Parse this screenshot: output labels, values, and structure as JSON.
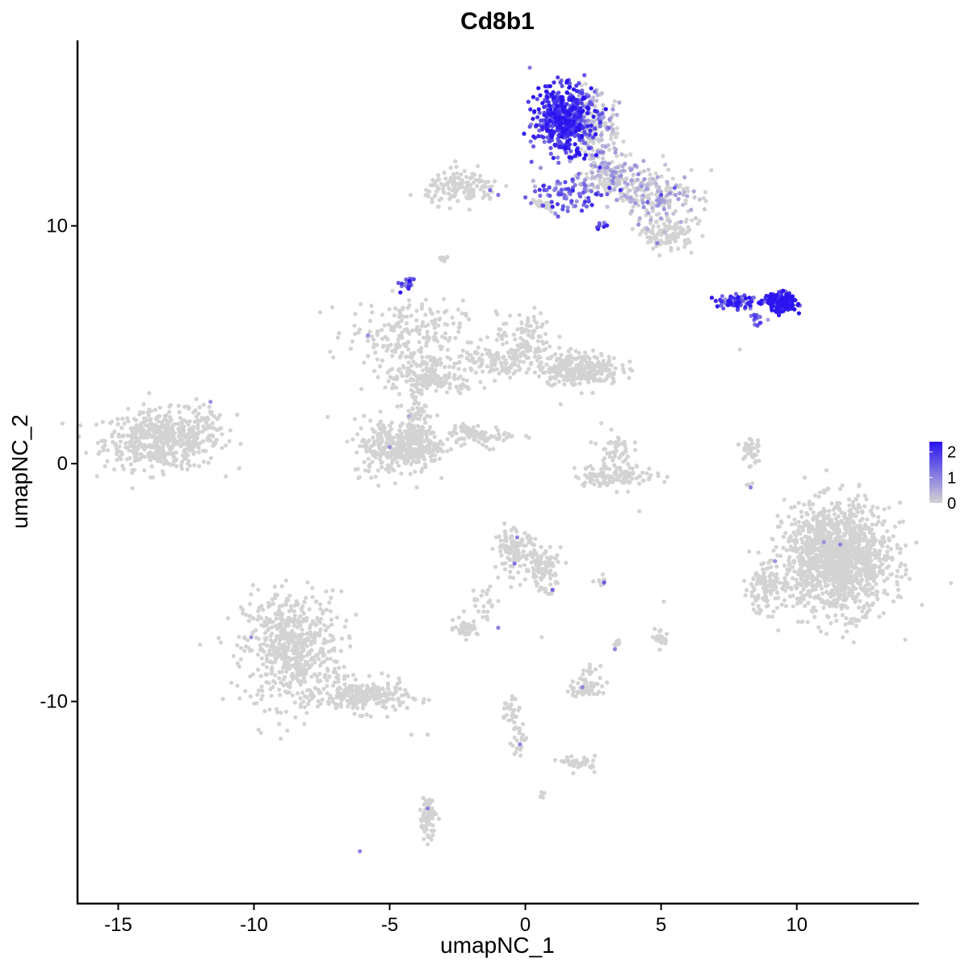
{
  "chart_data": {
    "type": "scatter",
    "title": "Cd8b1",
    "xlabel": "umapNC_1",
    "ylabel": "umapNC_2",
    "xlim": [
      -16.5,
      14.5
    ],
    "ylim": [
      -18.5,
      17.8
    ],
    "x_ticks": [
      -15,
      -10,
      -5,
      0,
      5,
      10
    ],
    "y_ticks": [
      -10,
      0,
      10
    ],
    "x_tick_labels": [
      "-15",
      "-10",
      "-5",
      "0",
      "5",
      "10"
    ],
    "y_tick_labels": [
      "-10",
      "0",
      "10"
    ],
    "grid": false,
    "legend": {
      "placement": "right",
      "ticks": [
        0,
        1,
        2
      ],
      "tick_labels": [
        "0",
        "1",
        "2"
      ],
      "range": [
        0,
        2.4
      ],
      "color_low": "#d3d3d3",
      "color_high": "#2a14f0"
    },
    "point_color_low": "#d3d3d3",
    "point_color_high": "#2a14f0",
    "clusters": [
      {
        "cx": -13.4,
        "cy": 1.0,
        "sx": 1.4,
        "sy": 0.8,
        "n": 520,
        "expr": 0.0
      },
      {
        "cx": -11.8,
        "cy": 1.7,
        "sx": 0.5,
        "sy": 0.6,
        "n": 40,
        "expr": 0.0
      },
      {
        "cx": -8.6,
        "cy": -7.8,
        "sx": 1.2,
        "sy": 1.6,
        "n": 600,
        "expr": 0.0
      },
      {
        "cx": -6.0,
        "cy": -9.8,
        "sx": 1.1,
        "sy": 0.45,
        "n": 220,
        "expr": 0.0
      },
      {
        "cx": -4.4,
        "cy": 5.5,
        "sx": 1.4,
        "sy": 0.9,
        "n": 200,
        "expr": 0.0
      },
      {
        "cx": -3.8,
        "cy": 3.7,
        "sx": 0.9,
        "sy": 0.5,
        "n": 120,
        "expr": 0.0
      },
      {
        "cx": -5.0,
        "cy": 0.7,
        "sx": 0.9,
        "sy": 0.8,
        "n": 230,
        "expr": 0.0
      },
      {
        "cx": -4.1,
        "cy": 2.0,
        "sx": 0.3,
        "sy": 0.8,
        "n": 60,
        "expr": 0.0
      },
      {
        "cx": -3.9,
        "cy": 0.8,
        "sx": 0.55,
        "sy": 0.6,
        "n": 160,
        "expr": 0.0
      },
      {
        "cx": -1.3,
        "cy": 4.3,
        "sx": 1.4,
        "sy": 0.5,
        "n": 140,
        "expr": 0.0
      },
      {
        "cx": 0.0,
        "cy": 5.3,
        "sx": 0.7,
        "sy": 0.7,
        "n": 80,
        "expr": 0.0
      },
      {
        "cx": 2.0,
        "cy": 4.0,
        "sx": 1.0,
        "sy": 0.45,
        "n": 260,
        "expr": 0.0
      },
      {
        "cx": -1.6,
        "cy": 1.2,
        "sx": 0.9,
        "sy": 0.25,
        "n": 60,
        "expr": 0.0
      },
      {
        "cx": -4.4,
        "cy": 7.5,
        "sx": 0.2,
        "sy": 0.2,
        "n": 22,
        "expr": 1.5
      },
      {
        "cx": -3.0,
        "cy": 8.6,
        "sx": 0.12,
        "sy": 0.12,
        "n": 12,
        "expr": 0.0
      },
      {
        "cx": -2.3,
        "cy": 11.6,
        "sx": 0.9,
        "sy": 0.45,
        "n": 140,
        "expr": 0.0
      },
      {
        "cx": 1.4,
        "cy": 14.5,
        "sx": 0.7,
        "sy": 0.9,
        "n": 520,
        "expr": 1.9
      },
      {
        "cx": 2.6,
        "cy": 14.2,
        "sx": 0.6,
        "sy": 1.0,
        "n": 170,
        "expr": 0.2
      },
      {
        "cx": 1.4,
        "cy": 11.3,
        "sx": 0.9,
        "sy": 0.5,
        "n": 80,
        "expr": 1.4
      },
      {
        "cx": 3.0,
        "cy": 12.0,
        "sx": 0.7,
        "sy": 0.6,
        "n": 140,
        "expr": 0.1
      },
      {
        "cx": 4.8,
        "cy": 11.3,
        "sx": 1.1,
        "sy": 0.8,
        "n": 200,
        "expr": 0.1
      },
      {
        "cx": 5.3,
        "cy": 9.6,
        "sx": 0.6,
        "sy": 0.4,
        "n": 110,
        "expr": 0.0
      },
      {
        "cx": 7.8,
        "cy": 6.8,
        "sx": 0.7,
        "sy": 0.18,
        "n": 80,
        "expr": 1.7
      },
      {
        "cx": 9.4,
        "cy": 6.8,
        "sx": 0.4,
        "sy": 0.25,
        "n": 170,
        "expr": 2.2
      },
      {
        "cx": 8.6,
        "cy": 6.1,
        "sx": 0.2,
        "sy": 0.2,
        "n": 15,
        "expr": 1.5
      },
      {
        "cx": 3.3,
        "cy": -0.5,
        "sx": 1.0,
        "sy": 0.3,
        "n": 120,
        "expr": 0.0
      },
      {
        "cx": 3.3,
        "cy": 0.6,
        "sx": 0.4,
        "sy": 0.45,
        "n": 45,
        "expr": 0.0
      },
      {
        "cx": 8.3,
        "cy": 0.6,
        "sx": 0.25,
        "sy": 0.5,
        "n": 35,
        "expr": 0.0
      },
      {
        "cx": 11.5,
        "cy": -4.0,
        "sx": 1.3,
        "sy": 1.5,
        "n": 1400,
        "expr": 0.0
      },
      {
        "cx": 8.8,
        "cy": -5.2,
        "sx": 0.5,
        "sy": 0.7,
        "n": 110,
        "expr": 0.0
      },
      {
        "cx": -0.4,
        "cy": -3.7,
        "sx": 0.5,
        "sy": 0.6,
        "n": 120,
        "expr": 0.0
      },
      {
        "cx": 0.7,
        "cy": -4.3,
        "sx": 0.5,
        "sy": 0.6,
        "n": 90,
        "expr": 0.0
      },
      {
        "cx": -1.5,
        "cy": -5.8,
        "sx": 0.4,
        "sy": 0.5,
        "n": 25,
        "expr": 0.0
      },
      {
        "cx": -2.2,
        "cy": -6.9,
        "sx": 0.3,
        "sy": 0.2,
        "n": 45,
        "expr": 0.0
      },
      {
        "cx": 2.3,
        "cy": -9.4,
        "sx": 0.45,
        "sy": 0.3,
        "n": 60,
        "expr": 0.0
      },
      {
        "cx": 2.4,
        "cy": -8.7,
        "sx": 0.2,
        "sy": 0.15,
        "n": 12,
        "expr": 0.0
      },
      {
        "cx": 5.0,
        "cy": -7.3,
        "sx": 0.15,
        "sy": 0.3,
        "n": 22,
        "expr": 0.0
      },
      {
        "cx": 3.4,
        "cy": -7.6,
        "sx": 0.1,
        "sy": 0.15,
        "n": 8,
        "expr": 0.0
      },
      {
        "cx": -0.5,
        "cy": -10.5,
        "sx": 0.25,
        "sy": 0.6,
        "n": 35,
        "expr": 0.0
      },
      {
        "cx": -0.2,
        "cy": -11.8,
        "sx": 0.2,
        "sy": 0.3,
        "n": 20,
        "expr": 0.0
      },
      {
        "cx": 2.0,
        "cy": -12.6,
        "sx": 0.4,
        "sy": 0.2,
        "n": 40,
        "expr": 0.0
      },
      {
        "cx": -3.6,
        "cy": -14.9,
        "sx": 0.2,
        "sy": 0.6,
        "n": 70,
        "expr": 0.0
      },
      {
        "cx": 0.6,
        "cy": -14.0,
        "sx": 0.1,
        "sy": 0.1,
        "n": 5,
        "expr": 0.0
      },
      {
        "cx": 2.8,
        "cy": 10.0,
        "sx": 0.15,
        "sy": 0.1,
        "n": 8,
        "expr": 1.5
      }
    ],
    "lines": [
      {
        "x0": -2.4,
        "y0": 1.6,
        "x1": -1.3,
        "y1": 0.7,
        "n": 40
      },
      {
        "x0": -3.9,
        "y0": 2.8,
        "x1": -3.3,
        "y1": 4.4,
        "n": 25
      },
      {
        "x0": -4.0,
        "y0": 3.6,
        "x1": -2.0,
        "y1": 3.1,
        "n": 35
      },
      {
        "x0": 0.3,
        "y0": 11.1,
        "x1": 1.1,
        "y1": 10.7,
        "n": 25
      },
      {
        "x0": -0.1,
        "y0": 4.6,
        "x1": 0.3,
        "y1": 6.2,
        "n": 15
      },
      {
        "x0": 0.4,
        "y0": -5.3,
        "x1": 1.1,
        "y1": -5.4,
        "n": 10
      },
      {
        "x0": 2.6,
        "y0": -5.0,
        "x1": 3.0,
        "y1": -4.9,
        "n": 8
      },
      {
        "x0": 8.1,
        "y0": -0.9,
        "x1": 8.2,
        "y1": -0.9,
        "n": 3
      }
    ],
    "points": [
      {
        "x": -6.1,
        "y": -16.3,
        "v": 1.0
      },
      {
        "x": -4.2,
        "y": -11.4,
        "v": 0.0
      },
      {
        "x": -3.6,
        "y": -11.4,
        "v": 0.0
      },
      {
        "x": 0.6,
        "y": -7.3,
        "v": 0.0
      },
      {
        "x": 2.2,
        "y": -0.8,
        "v": 0.0
      },
      {
        "x": 4.2,
        "y": -2.0,
        "v": 0.0
      },
      {
        "x": 5.1,
        "y": -5.8,
        "v": 0.0
      },
      {
        "x": 7.9,
        "y": 4.8,
        "v": 0.0
      },
      {
        "x": 2.8,
        "y": 1.7,
        "v": 0.0
      },
      {
        "x": 1.3,
        "y": 2.5,
        "v": 0.0
      },
      {
        "x": 8.3,
        "y": -1.0,
        "v": 1.0
      },
      {
        "x": 11.0,
        "y": -3.3,
        "v": 0.8
      },
      {
        "x": 11.6,
        "y": -3.4,
        "v": 1.0
      },
      {
        "x": 9.2,
        "y": -4.1,
        "v": 0.8
      },
      {
        "x": -1.0,
        "y": -6.9,
        "v": 1.0
      },
      {
        "x": 1.0,
        "y": -5.3,
        "v": 1.4
      },
      {
        "x": 2.9,
        "y": -5.0,
        "v": 1.5
      },
      {
        "x": -0.4,
        "y": -4.2,
        "v": 1.2
      },
      {
        "x": -0.3,
        "y": -3.1,
        "v": 1.0
      },
      {
        "x": 3.3,
        "y": -7.8,
        "v": 1.0
      },
      {
        "x": -0.2,
        "y": -11.8,
        "v": 1.0
      },
      {
        "x": -4.0,
        "y": -1.0,
        "v": 0.0
      },
      {
        "x": -5.0,
        "y": 0.7,
        "v": 0.8
      },
      {
        "x": -4.3,
        "y": 2.0,
        "v": 0.5
      },
      {
        "x": -10.1,
        "y": -7.3,
        "v": 0.8
      },
      {
        "x": -3.6,
        "y": -14.5,
        "v": 1.0
      },
      {
        "x": 2.1,
        "y": -9.4,
        "v": 1.0
      },
      {
        "x": -5.8,
        "y": 5.4,
        "v": 0.8
      },
      {
        "x": -11.6,
        "y": 2.6,
        "v": 0.8
      },
      {
        "x": 0.0,
        "y": 11.2,
        "v": 1.5
      },
      {
        "x": 1.0,
        "y": 10.8,
        "v": 2.2
      },
      {
        "x": 3.5,
        "y": 11.5,
        "v": 2.0
      },
      {
        "x": 3.1,
        "y": 11.6,
        "v": 2.2
      },
      {
        "x": 1.6,
        "y": 14.4,
        "v": 2.4
      },
      {
        "x": 1.9,
        "y": 13.2,
        "v": 2.4
      },
      {
        "x": 2.0,
        "y": 13.0,
        "v": 2.4
      },
      {
        "x": 9.3,
        "y": 6.6,
        "v": 2.4
      },
      {
        "x": 9.6,
        "y": 6.8,
        "v": 2.4
      },
      {
        "x": 4.5,
        "y": 11.0,
        "v": 1.5
      },
      {
        "x": 5.0,
        "y": 11.3,
        "v": 1.7
      },
      {
        "x": 5.5,
        "y": 11.6,
        "v": 1.5
      },
      {
        "x": -1.0,
        "y": 11.3,
        "v": 1.2
      },
      {
        "x": -1.3,
        "y": 11.5,
        "v": 1.3
      }
    ]
  }
}
